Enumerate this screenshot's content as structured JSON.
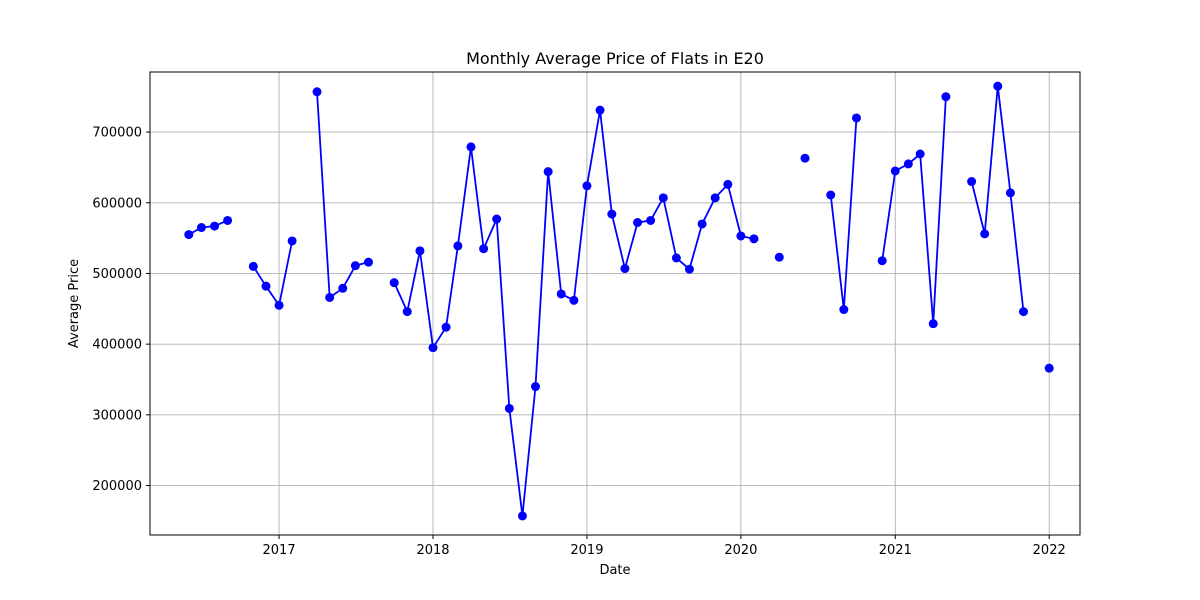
{
  "chart_data": {
    "type": "line",
    "title": "Monthly Average Price of Flats in E20",
    "xlabel": "Date",
    "ylabel": "Average Price",
    "xlim": [
      "2016-03-01",
      "2022-03-15"
    ],
    "ylim": [
      130000,
      785000
    ],
    "x_ticks": [
      "2017",
      "2018",
      "2019",
      "2020",
      "2021",
      "2022"
    ],
    "y_ticks": [
      "200000",
      "300000",
      "400000",
      "500000",
      "600000",
      "700000"
    ],
    "y_tick_values": [
      200000,
      300000,
      400000,
      500000,
      600000,
      700000
    ],
    "grid": true,
    "colors": {
      "series": "#0000ff",
      "grid": "#b0b0b0",
      "axis": "#000000"
    },
    "series": [
      {
        "name": "",
        "marker": "o",
        "segments": [
          [
            {
              "x": "2016-06-01",
              "y": 555000
            },
            {
              "x": "2016-07-01",
              "y": 565000
            },
            {
              "x": "2016-08-01",
              "y": 567000
            },
            {
              "x": "2016-09-01",
              "y": 575000
            }
          ],
          [
            {
              "x": "2016-11-01",
              "y": 510000
            },
            {
              "x": "2016-12-01",
              "y": 482000
            },
            {
              "x": "2017-01-01",
              "y": 455000
            },
            {
              "x": "2017-02-01",
              "y": 546000
            }
          ],
          [
            {
              "x": "2017-04-01",
              "y": 757000
            },
            {
              "x": "2017-05-01",
              "y": 466000
            },
            {
              "x": "2017-06-01",
              "y": 479000
            },
            {
              "x": "2017-07-01",
              "y": 511000
            },
            {
              "x": "2017-08-01",
              "y": 516000
            }
          ],
          [
            {
              "x": "2017-10-01",
              "y": 487000
            },
            {
              "x": "2017-11-01",
              "y": 446000
            },
            {
              "x": "2017-12-01",
              "y": 532000
            },
            {
              "x": "2018-01-01",
              "y": 395000
            },
            {
              "x": "2018-02-01",
              "y": 424000
            },
            {
              "x": "2018-03-01",
              "y": 539000
            },
            {
              "x": "2018-04-01",
              "y": 679000
            },
            {
              "x": "2018-05-01",
              "y": 535000
            },
            {
              "x": "2018-06-01",
              "y": 577000
            },
            {
              "x": "2018-07-01",
              "y": 309000
            },
            {
              "x": "2018-08-01",
              "y": 157000
            },
            {
              "x": "2018-09-01",
              "y": 340000
            },
            {
              "x": "2018-10-01",
              "y": 644000
            },
            {
              "x": "2018-11-01",
              "y": 471000
            },
            {
              "x": "2018-12-01",
              "y": 462000
            },
            {
              "x": "2019-01-01",
              "y": 624000
            },
            {
              "x": "2019-02-01",
              "y": 731000
            },
            {
              "x": "2019-03-01",
              "y": 584000
            },
            {
              "x": "2019-04-01",
              "y": 507000
            },
            {
              "x": "2019-05-01",
              "y": 572000
            },
            {
              "x": "2019-06-01",
              "y": 575000
            },
            {
              "x": "2019-07-01",
              "y": 607000
            },
            {
              "x": "2019-08-01",
              "y": 522000
            },
            {
              "x": "2019-09-01",
              "y": 506000
            },
            {
              "x": "2019-10-01",
              "y": 570000
            },
            {
              "x": "2019-11-01",
              "y": 607000
            },
            {
              "x": "2019-12-01",
              "y": 626000
            },
            {
              "x": "2020-01-01",
              "y": 553000
            },
            {
              "x": "2020-02-01",
              "y": 549000
            }
          ],
          [
            {
              "x": "2020-04-01",
              "y": 523000
            }
          ],
          [
            {
              "x": "2020-06-01",
              "y": 663000
            }
          ],
          [
            {
              "x": "2020-08-01",
              "y": 611000
            },
            {
              "x": "2020-09-01",
              "y": 449000
            },
            {
              "x": "2020-10-01",
              "y": 720000
            }
          ],
          [
            {
              "x": "2020-12-01",
              "y": 518000
            },
            {
              "x": "2021-01-01",
              "y": 645000
            },
            {
              "x": "2021-02-01",
              "y": 655000
            },
            {
              "x": "2021-03-01",
              "y": 669000
            },
            {
              "x": "2021-04-01",
              "y": 429000
            },
            {
              "x": "2021-05-01",
              "y": 750000
            }
          ],
          [
            {
              "x": "2021-07-01",
              "y": 630000
            },
            {
              "x": "2021-08-01",
              "y": 556000
            },
            {
              "x": "2021-09-01",
              "y": 765000
            },
            {
              "x": "2021-10-01",
              "y": 614000
            },
            {
              "x": "2021-11-01",
              "y": 446000
            }
          ],
          [
            {
              "x": "2022-01-01",
              "y": 366000
            }
          ]
        ]
      }
    ]
  }
}
